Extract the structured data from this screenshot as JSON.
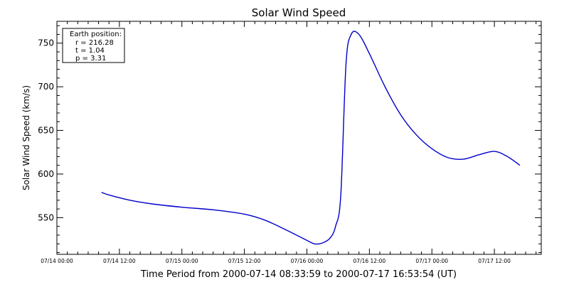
{
  "chart_data": {
    "type": "line",
    "title": "Solar Wind Speed",
    "xlabel": "Time Period from 2000-07-14 08:33:59 to 2000-07-17 16:53:54 (UT)",
    "ylabel": "Solar Wind Speed (km/s)",
    "xlim": [
      "2000-07-14 00:00",
      "2000-07-17 21:00"
    ],
    "ylim": [
      508,
      775
    ],
    "x_ticks": [
      "07/14 00:00",
      "07/14 12:00",
      "07/15 00:00",
      "07/15 12:00",
      "07/16 00:00",
      "07/16 12:00",
      "07/17 00:00",
      "07/17 12:00"
    ],
    "y_ticks": [
      550,
      600,
      650,
      700,
      750
    ],
    "grid": false,
    "series": [
      {
        "color": "#0000cc",
        "x": [
          "2000-07-14 08:34",
          "2000-07-14 10:00",
          "2000-07-14 14:00",
          "2000-07-14 18:00",
          "2000-07-15 00:00",
          "2000-07-15 06:00",
          "2000-07-15 12:00",
          "2000-07-15 16:00",
          "2000-07-15 20:00",
          "2000-07-16 00:00",
          "2000-07-16 01:30",
          "2000-07-16 03:00",
          "2000-07-16 04:30",
          "2000-07-16 05:30",
          "2000-07-16 06:30",
          "2000-07-16 07:30",
          "2000-07-16 08:30",
          "2000-07-16 10:00",
          "2000-07-16 12:00",
          "2000-07-16 15:00",
          "2000-07-16 18:00",
          "2000-07-16 21:00",
          "2000-07-17 00:00",
          "2000-07-17 03:00",
          "2000-07-17 06:00",
          "2000-07-17 09:00",
          "2000-07-17 12:00",
          "2000-07-17 14:30",
          "2000-07-17 16:54"
        ],
        "y": [
          579,
          576,
          570,
          566,
          562,
          559,
          554,
          547,
          536,
          524,
          520,
          521,
          527,
          540,
          575,
          725,
          760,
          760,
          738,
          700,
          668,
          645,
          629,
          619,
          617,
          622,
          626,
          620,
          610
        ]
      }
    ],
    "annotation": {
      "heading": "Earth position:",
      "lines": [
        "r = 216.28",
        "t = 1.04",
        "p = 3.31"
      ]
    }
  }
}
